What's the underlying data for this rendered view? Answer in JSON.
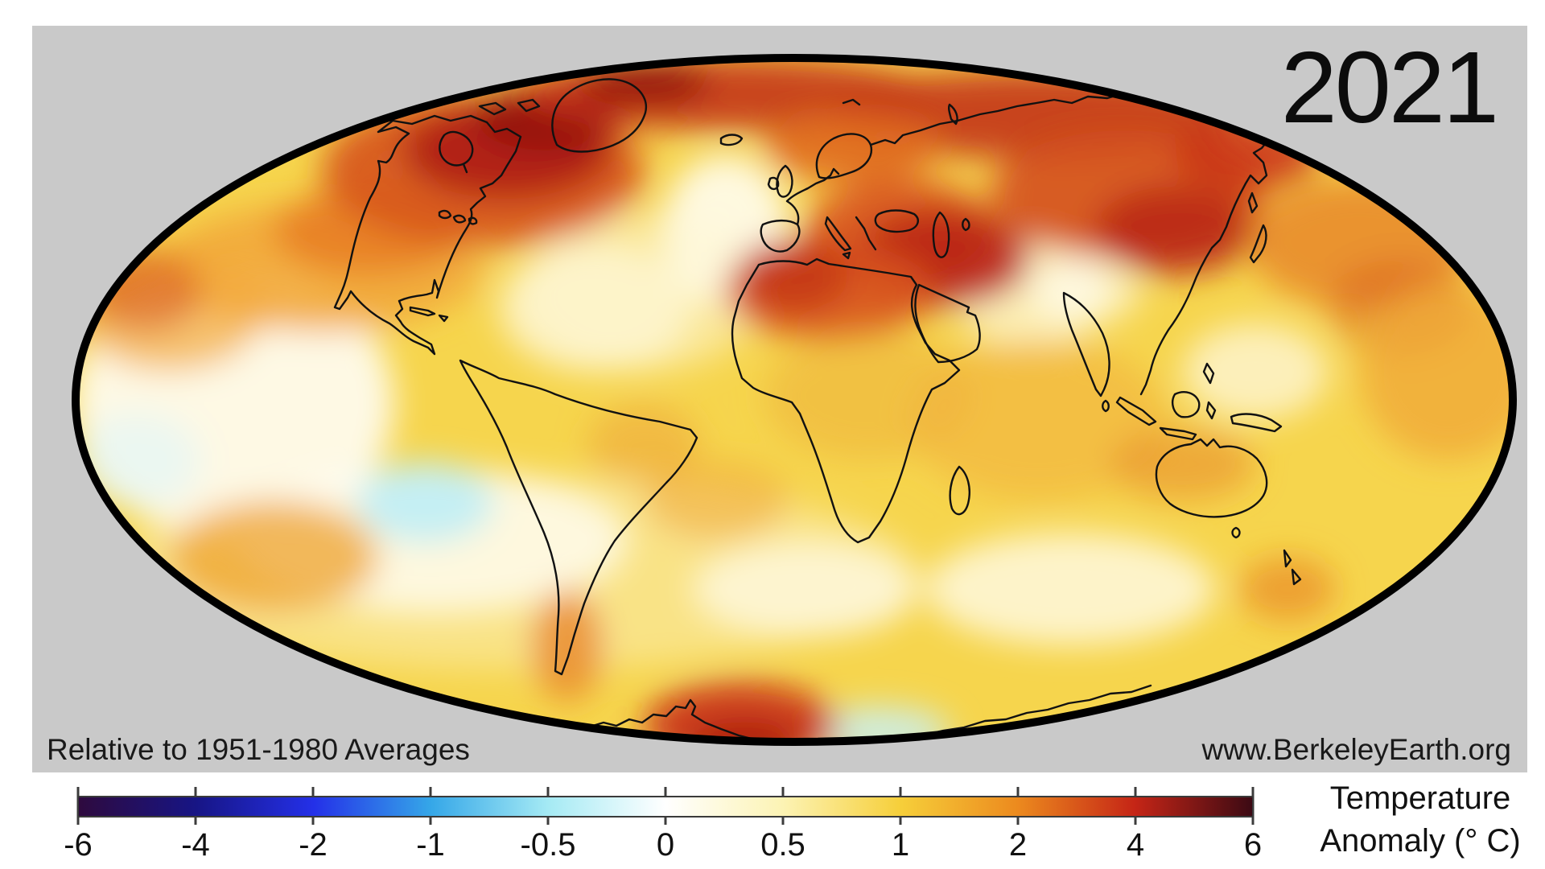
{
  "map_panel": {
    "background_color": "#c9c9c9",
    "year_label": "2021",
    "baseline_note": "Relative to 1951-1980 Averages",
    "source_note": "www.BerkeleyEarth.org"
  },
  "colorbar": {
    "title_line1": "Temperature",
    "title_line2": "Anomaly (° C)",
    "tick_labels": [
      "-6",
      "-4",
      "-2",
      "-1",
      "-0.5",
      "0",
      "0.5",
      "1",
      "2",
      "4",
      "6"
    ],
    "gradient_stops": [
      "#2e0a3e",
      "#171585",
      "#2430e8",
      "#35a7e8",
      "#a5eaf4",
      "#ffffff",
      "#fcf3b4",
      "#f6cf3a",
      "#ec8a1e",
      "#c52516",
      "#3c0a14"
    ]
  },
  "chart_data": {
    "type": "heatmap",
    "title": "2021",
    "subtitle": "Relative to 1951-1980 Averages",
    "legend_title": "Temperature Anomaly (° C)",
    "scale_ticks": [
      -6,
      -4,
      -2,
      -1,
      -0.5,
      0,
      0.5,
      1,
      2,
      4,
      6
    ],
    "scale_colors": [
      "#2e0a3e",
      "#171585",
      "#2430e8",
      "#35a7e8",
      "#a5eaf4",
      "#ffffff",
      "#fcf3b4",
      "#f6cf3a",
      "#ec8a1e",
      "#c52516",
      "#3c0a14"
    ],
    "scale_spacing": "nonlinear ticks rendered at equal intervals",
    "source": "www.BerkeleyEarth.org"
  }
}
